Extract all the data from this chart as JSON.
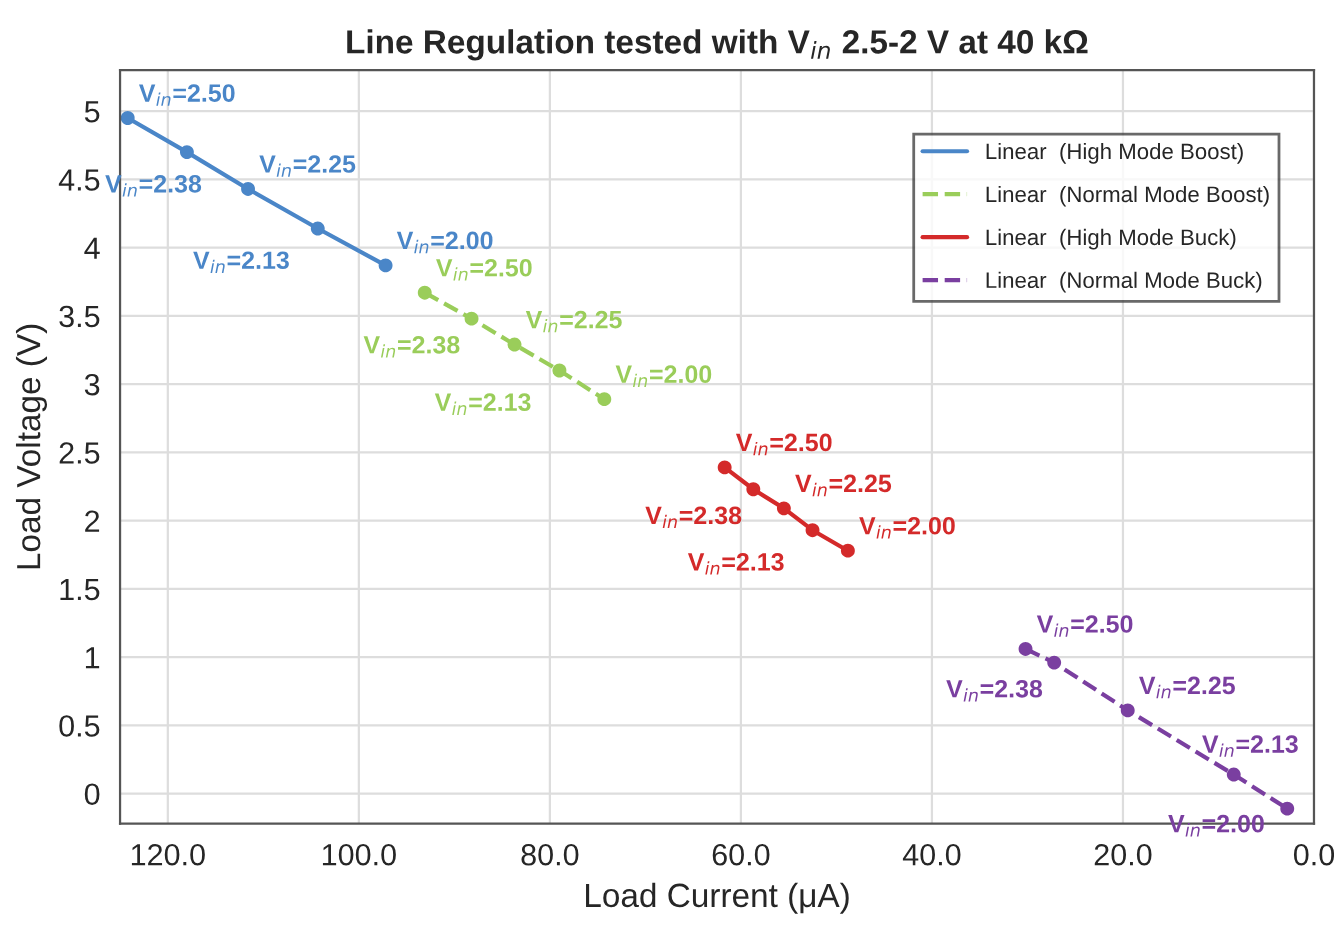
{
  "chart_data": {
    "type": "line",
    "title": "Line Regulation tested with V$_{in}$ 2.5-2 V at 40 kΩ",
    "xlabel": "Load Current (μA)",
    "ylabel": "Load Voltage (V)",
    "xlim": [
      125,
      0
    ],
    "ylim": [
      -0.22,
      5.3
    ],
    "xticks": [
      {
        "value": 120,
        "label": "120.0"
      },
      {
        "value": 100,
        "label": "100.0"
      },
      {
        "value": 80,
        "label": "80.0"
      },
      {
        "value": 60,
        "label": "60.0"
      },
      {
        "value": 40,
        "label": "40.0"
      },
      {
        "value": 20,
        "label": "20.0"
      },
      {
        "value": 0,
        "label": "0.0"
      }
    ],
    "yticks": [
      0,
      0.5,
      1,
      1.5,
      2,
      2.5,
      3,
      3.5,
      4,
      4.5,
      5
    ],
    "grid": true,
    "legend": "top right",
    "marker": "circle",
    "series": [
      {
        "name": "Linear  (High Mode Boost)",
        "color": "#4a86c8",
        "line_style": "solid",
        "x": [
          124.2,
          118.0,
          111.6,
          104.3,
          97.2
        ],
        "values": [
          4.95,
          4.7,
          4.43,
          4.14,
          3.87
        ]
      },
      {
        "name": "Linear  (Normal Mode Boost)",
        "color": "#9acd5a",
        "line_style": "dashed",
        "x": [
          93.1,
          88.2,
          83.7,
          79.0,
          74.3
        ],
        "values": [
          3.67,
          3.48,
          3.29,
          3.1,
          2.89
        ]
      },
      {
        "name": "Linear  (High Mode Buck)",
        "color": "#d42a2a",
        "line_style": "solid",
        "x": [
          61.7,
          58.7,
          55.5,
          52.5,
          48.8
        ],
        "values": [
          2.39,
          2.23,
          2.09,
          1.93,
          1.78
        ]
      },
      {
        "name": "Linear  (Normal Mode Buck)",
        "color": "#7a3fa0",
        "line_style": "dashed",
        "x": [
          30.2,
          27.2,
          19.5,
          8.4,
          2.8
        ],
        "values": [
          1.06,
          0.96,
          0.61,
          0.14,
          -0.11
        ]
      }
    ],
    "annotations": [
      {
        "text": "V$_{in}$=2.50",
        "x": 124.2,
        "y": 4.95
      },
      {
        "text": "V$_{in}$=2.38",
        "x": 118.0,
        "y": 4.7
      },
      {
        "text": "V$_{in}$=2.25",
        "x": 111.6,
        "y": 4.43
      },
      {
        "text": "V$_{in}$=2.13",
        "x": 104.3,
        "y": 4.14
      },
      {
        "text": "V$_{in}$=2.00",
        "x": 97.2,
        "y": 3.87
      },
      {
        "text": "V$_{in}$=2.50",
        "x": 93.1,
        "y": 3.67
      },
      {
        "text": "V$_{in}$=2.38",
        "x": 88.2,
        "y": 3.48
      },
      {
        "text": "V$_{in}$=2.25",
        "x": 83.7,
        "y": 3.29
      },
      {
        "text": "V$_{in}$=2.13",
        "x": 79.0,
        "y": 3.1
      },
      {
        "text": "V$_{in}$=2.00",
        "x": 74.3,
        "y": 2.89
      },
      {
        "text": "V$_{in}$=2.50",
        "x": 61.7,
        "y": 2.39
      },
      {
        "text": "V$_{in}$=2.38",
        "x": 58.7,
        "y": 2.23
      },
      {
        "text": "V$_{in}$=2.25",
        "x": 55.5,
        "y": 2.09
      },
      {
        "text": "V$_{in}$=2.13",
        "x": 52.5,
        "y": 1.93
      },
      {
        "text": "V$_{in}$=2.00",
        "x": 48.8,
        "y": 1.78
      },
      {
        "text": "V$_{in}$=2.50",
        "x": 30.2,
        "y": 1.06
      },
      {
        "text": "V$_{in}$=2.38",
        "x": 27.2,
        "y": 0.96
      },
      {
        "text": "V$_{in}$=2.25",
        "x": 19.5,
        "y": 0.61
      },
      {
        "text": "V$_{in}$=2.13",
        "x": 8.4,
        "y": 0.14
      },
      {
        "text": "V$_{in}$=2.00",
        "x": 2.8,
        "y": -0.11
      }
    ]
  }
}
